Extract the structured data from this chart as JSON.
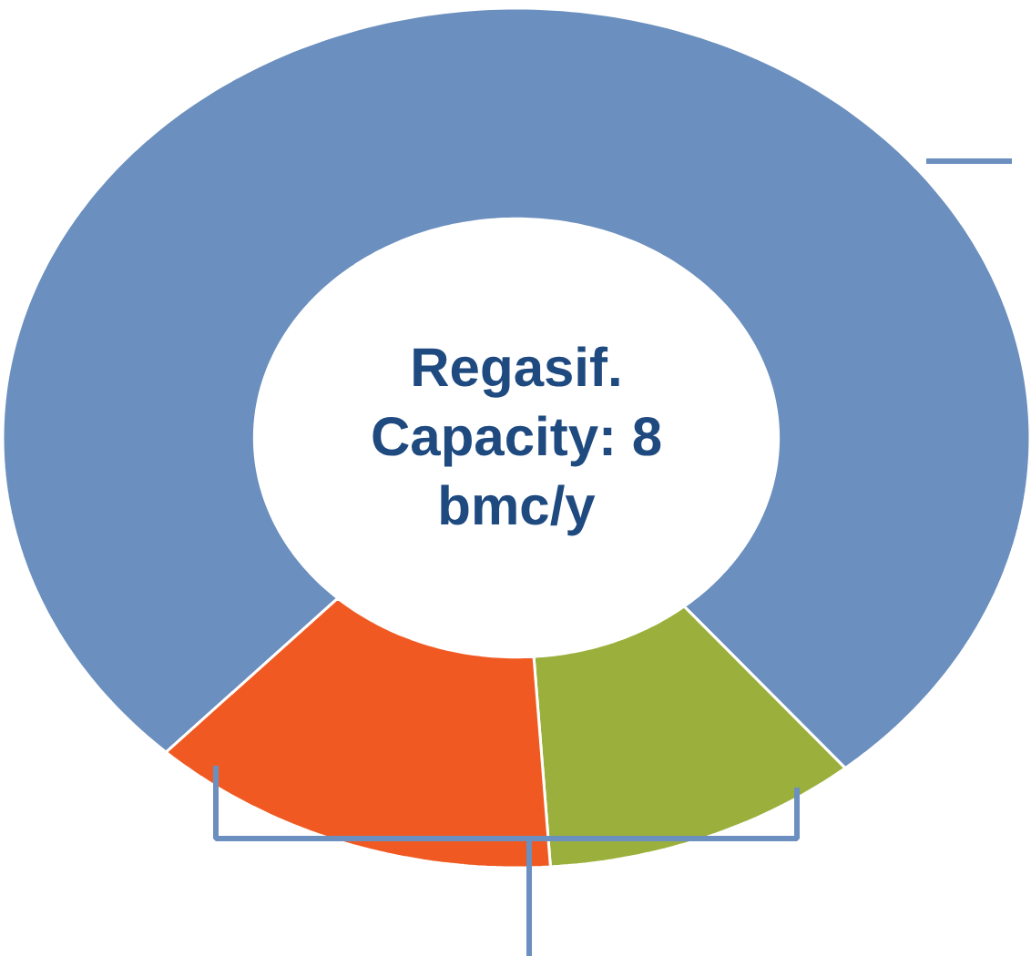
{
  "chart_data": {
    "type": "donut",
    "categories": [
      null,
      null,
      null
    ],
    "values": [
      77,
      10,
      13
    ],
    "colors": [
      "#6b8fbe",
      "#9bb03c",
      "#f05a22"
    ],
    "annotations": [
      "Regasif.\nCapacity: 8\nbmc/y"
    ]
  }
}
